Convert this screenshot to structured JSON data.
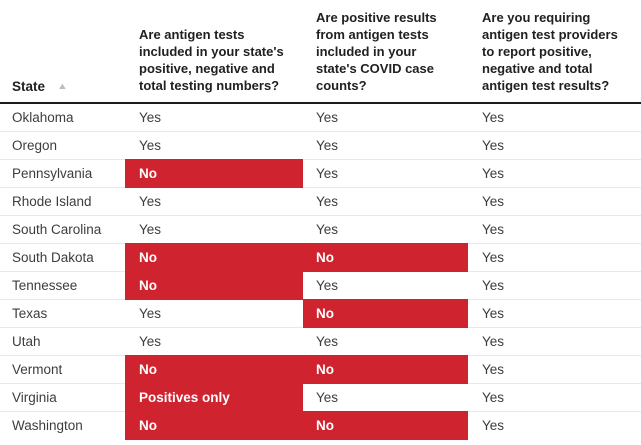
{
  "colors": {
    "highlight": "#cf2430",
    "highlight_text": "#ffffff",
    "header_rule": "#1a1a1a",
    "row_divider": "#e8e8e8",
    "header_text": "#212121",
    "body_text": "#3d3d3d",
    "sort_icon": "#bdbdbd"
  },
  "table": {
    "sort_icon_glyph": "▲",
    "columns": [
      {
        "label": "State",
        "sort_indicator": "ascending"
      },
      {
        "label": "Are antigen tests\nincluded in your state's\npositive, negative and\ntotal testing numbers?"
      },
      {
        "label": "Are positive results\nfrom antigen tests\nincluded in your\nstate's COVID case\ncounts?"
      },
      {
        "label": "Are you requiring\nantigen test providers\nto report positive,\nnegative and total\nantigen test results?"
      }
    ],
    "rows": [
      {
        "state": "Oklahoma",
        "answers": [
          {
            "text": "Yes",
            "highlight": false
          },
          {
            "text": "Yes",
            "highlight": false
          },
          {
            "text": "Yes",
            "highlight": false
          }
        ]
      },
      {
        "state": "Oregon",
        "answers": [
          {
            "text": "Yes",
            "highlight": false
          },
          {
            "text": "Yes",
            "highlight": false
          },
          {
            "text": "Yes",
            "highlight": false
          }
        ]
      },
      {
        "state": "Pennsylvania",
        "answers": [
          {
            "text": "No",
            "highlight": true
          },
          {
            "text": "Yes",
            "highlight": false
          },
          {
            "text": "Yes",
            "highlight": false
          }
        ]
      },
      {
        "state": "Rhode Island",
        "answers": [
          {
            "text": "Yes",
            "highlight": false
          },
          {
            "text": "Yes",
            "highlight": false
          },
          {
            "text": "Yes",
            "highlight": false
          }
        ]
      },
      {
        "state": "South Carolina",
        "answers": [
          {
            "text": "Yes",
            "highlight": false
          },
          {
            "text": "Yes",
            "highlight": false
          },
          {
            "text": "Yes",
            "highlight": false
          }
        ]
      },
      {
        "state": "South Dakota",
        "answers": [
          {
            "text": "No",
            "highlight": true
          },
          {
            "text": "No",
            "highlight": true
          },
          {
            "text": "Yes",
            "highlight": false
          }
        ]
      },
      {
        "state": "Tennessee",
        "answers": [
          {
            "text": "No",
            "highlight": true
          },
          {
            "text": "Yes",
            "highlight": false
          },
          {
            "text": "Yes",
            "highlight": false
          }
        ]
      },
      {
        "state": "Texas",
        "answers": [
          {
            "text": "Yes",
            "highlight": false
          },
          {
            "text": "No",
            "highlight": true
          },
          {
            "text": "Yes",
            "highlight": false
          }
        ]
      },
      {
        "state": "Utah",
        "answers": [
          {
            "text": "Yes",
            "highlight": false
          },
          {
            "text": "Yes",
            "highlight": false
          },
          {
            "text": "Yes",
            "highlight": false
          }
        ]
      },
      {
        "state": "Vermont",
        "answers": [
          {
            "text": "No",
            "highlight": true
          },
          {
            "text": "No",
            "highlight": true
          },
          {
            "text": "Yes",
            "highlight": false
          }
        ]
      },
      {
        "state": "Virginia",
        "answers": [
          {
            "text": "Positives only",
            "highlight": true
          },
          {
            "text": "Yes",
            "highlight": false
          },
          {
            "text": "Yes",
            "highlight": false
          }
        ]
      },
      {
        "state": "Washington",
        "answers": [
          {
            "text": "No",
            "highlight": true
          },
          {
            "text": "No",
            "highlight": true
          },
          {
            "text": "Yes",
            "highlight": false
          }
        ]
      }
    ]
  }
}
